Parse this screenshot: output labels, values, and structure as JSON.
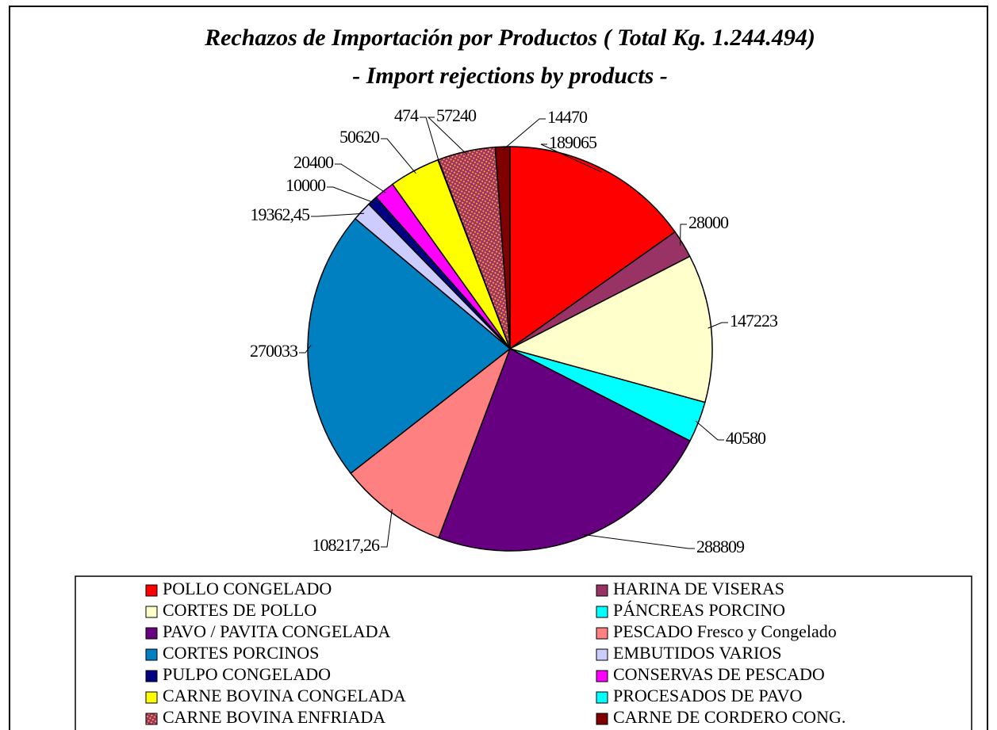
{
  "chart_data": {
    "type": "pie",
    "title": "Rechazos de Importación por Productos ( Total Kg. 1.244.494)",
    "subtitle": "- Import rejections by products -",
    "categories": [
      "POLLO CONGELADO",
      "HARINA DE VISERAS",
      "CORTES DE POLLO",
      "PÁNCREAS PORCINO",
      "PAVO / PAVITA CONGELADA",
      "PESCADO Fresco y Congelado",
      "CORTES PORCINOS",
      "EMBUTIDOS VARIOS",
      "PULPO CONGELADO",
      "CONSERVAS DE PESCADO",
      "CARNE BOVINA CONGELADA",
      "PROCESADOS DE PAVO",
      "CARNE BOVINA ENFRIADA",
      "CARNE DE CORDERO CONG."
    ],
    "values": [
      189065,
      28000,
      147223,
      40580,
      288809,
      108217.26,
      270033,
      19362.45,
      10000,
      20400,
      50620,
      474,
      57240,
      14470
    ],
    "value_labels": [
      "189065",
      "28000",
      "147223",
      "40580",
      "288809",
      "108217,26",
      "270033",
      "19362,45",
      "10000",
      "20400",
      "50620",
      "474",
      "57240",
      "14470"
    ],
    "colors": [
      "#ff0000",
      "#993366",
      "#ffffcc",
      "#00ffff",
      "#660080",
      "#ff8080",
      "#0080c0",
      "#ccccff",
      "#000080",
      "#ff00ff",
      "#ffff00",
      "#00ffff",
      "#993366",
      "#800000"
    ],
    "patterns": [
      null,
      null,
      null,
      null,
      null,
      null,
      null,
      null,
      null,
      null,
      null,
      null,
      "hatch",
      null
    ],
    "legend": "bottom"
  }
}
